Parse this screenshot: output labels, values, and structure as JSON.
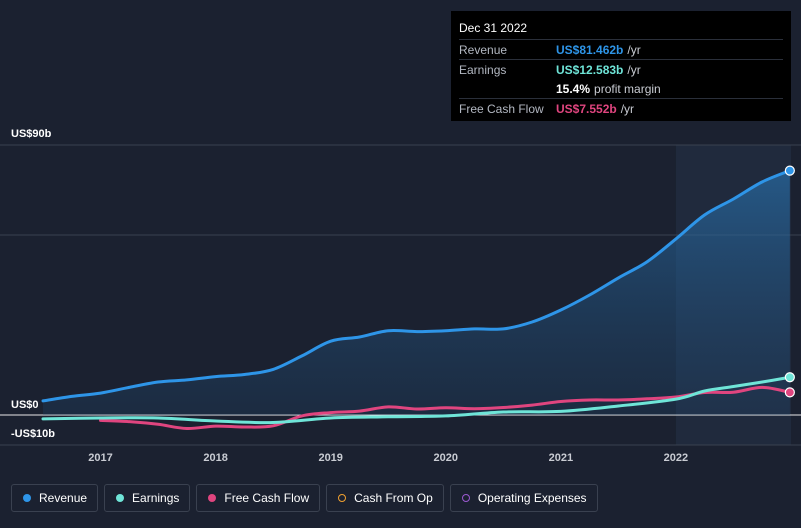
{
  "tooltip": {
    "date": "Dec 31 2022",
    "rows": [
      {
        "label": "Revenue",
        "value": "US$81.462b",
        "unit": "/yr",
        "color": "#2e95e8"
      },
      {
        "label": "Earnings",
        "value": "US$12.583b",
        "unit": "/yr",
        "color": "#6fe5d8"
      },
      {
        "label": "",
        "value": "15.4%",
        "unit": "profit margin",
        "color": "#ffffff"
      },
      {
        "label": "Free Cash Flow",
        "value": "US$7.552b",
        "unit": "/yr",
        "color": "#e0457f"
      }
    ]
  },
  "legend": [
    {
      "label": "Revenue",
      "color": "#2e95e8",
      "filled": true
    },
    {
      "label": "Earnings",
      "color": "#6fe5d8",
      "filled": true
    },
    {
      "label": "Free Cash Flow",
      "color": "#e0457f",
      "filled": true
    },
    {
      "label": "Cash From Op",
      "color": "#f0a030",
      "filled": false
    },
    {
      "label": "Operating Expenses",
      "color": "#9b59d0",
      "filled": false
    }
  ],
  "chart_data": {
    "type": "line",
    "ylim": [
      -10,
      90
    ],
    "ytick_labels": [
      "US$90b",
      "US$0",
      "-US$10b"
    ],
    "ytick_values": [
      90,
      0,
      -10
    ],
    "xlim": [
      2016.5,
      2023.0
    ],
    "xticks": [
      2017,
      2018,
      2019,
      2020,
      2021,
      2022
    ],
    "xtick_labels": [
      "2017",
      "2018",
      "2019",
      "2020",
      "2021",
      "2022"
    ],
    "forecast_start": 2022.0,
    "grid": "horizontal",
    "legend_position": "bottom",
    "series": [
      {
        "name": "Revenue",
        "color": "#2e95e8",
        "area": true,
        "points": [
          [
            2016.5,
            4.7
          ],
          [
            2016.75,
            6.2
          ],
          [
            2017.0,
            7.3
          ],
          [
            2017.25,
            9.2
          ],
          [
            2017.5,
            11.0
          ],
          [
            2017.75,
            11.7
          ],
          [
            2018.0,
            12.8
          ],
          [
            2018.25,
            13.5
          ],
          [
            2018.5,
            15.2
          ],
          [
            2018.75,
            19.7
          ],
          [
            2019.0,
            24.6
          ],
          [
            2019.25,
            26.0
          ],
          [
            2019.5,
            28.1
          ],
          [
            2019.75,
            27.8
          ],
          [
            2020.0,
            28.1
          ],
          [
            2020.25,
            28.7
          ],
          [
            2020.5,
            28.7
          ],
          [
            2020.75,
            31.0
          ],
          [
            2021.0,
            35.0
          ],
          [
            2021.25,
            40.0
          ],
          [
            2021.5,
            45.7
          ],
          [
            2021.75,
            51.1
          ],
          [
            2022.0,
            58.7
          ],
          [
            2022.25,
            66.7
          ],
          [
            2022.5,
            72.0
          ],
          [
            2022.75,
            77.7
          ],
          [
            2022.99,
            81.462
          ]
        ]
      },
      {
        "name": "Earnings",
        "color": "#6fe5d8",
        "area": false,
        "points": [
          [
            2016.5,
            -1.3
          ],
          [
            2017.0,
            -1.0
          ],
          [
            2017.5,
            -1.0
          ],
          [
            2018.0,
            -2.0
          ],
          [
            2018.5,
            -2.5
          ],
          [
            2019.0,
            -1.0
          ],
          [
            2019.5,
            -0.6
          ],
          [
            2020.0,
            -0.3
          ],
          [
            2020.5,
            1.0
          ],
          [
            2021.0,
            1.2
          ],
          [
            2021.5,
            3.0
          ],
          [
            2022.0,
            5.3
          ],
          [
            2022.25,
            8.0
          ],
          [
            2022.5,
            9.5
          ],
          [
            2022.75,
            11.0
          ],
          [
            2022.99,
            12.583
          ]
        ]
      },
      {
        "name": "Free Cash Flow",
        "color": "#e0457f",
        "area": false,
        "points": [
          [
            2017.0,
            -1.8
          ],
          [
            2017.25,
            -2.2
          ],
          [
            2017.5,
            -3.1
          ],
          [
            2017.75,
            -4.5
          ],
          [
            2018.0,
            -3.7
          ],
          [
            2018.25,
            -4.0
          ],
          [
            2018.5,
            -3.6
          ],
          [
            2018.75,
            -0.3
          ],
          [
            2019.0,
            0.8
          ],
          [
            2019.25,
            1.3
          ],
          [
            2019.5,
            2.7
          ],
          [
            2019.75,
            2.0
          ],
          [
            2020.0,
            2.4
          ],
          [
            2020.25,
            2.1
          ],
          [
            2020.5,
            2.5
          ],
          [
            2020.75,
            3.3
          ],
          [
            2021.0,
            4.5
          ],
          [
            2021.25,
            5.0
          ],
          [
            2021.5,
            5.0
          ],
          [
            2021.75,
            5.4
          ],
          [
            2022.0,
            6.0
          ],
          [
            2022.25,
            7.5
          ],
          [
            2022.5,
            7.6
          ],
          [
            2022.75,
            9.2
          ],
          [
            2022.99,
            7.552
          ]
        ]
      }
    ]
  }
}
